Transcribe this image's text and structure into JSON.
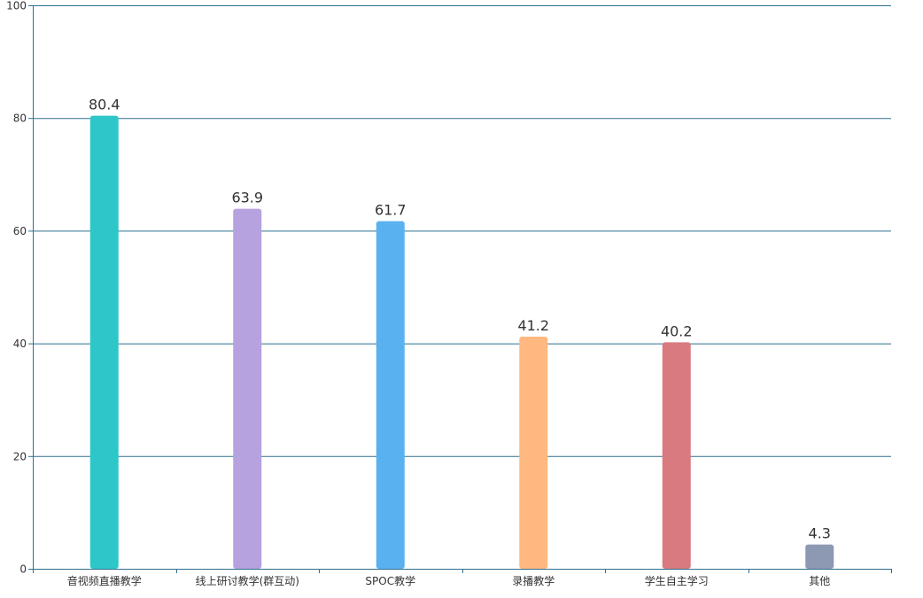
{
  "chart_data": {
    "type": "bar",
    "title": "",
    "xlabel": "",
    "ylabel": "",
    "ylim": [
      0,
      100
    ],
    "yticks": [
      0,
      20,
      40,
      60,
      80,
      100
    ],
    "grid": true,
    "legend": "none",
    "categories": [
      "音视频直播教学",
      "线上研讨教学(群互动)",
      "SPOC教学",
      "录播教学",
      "学生自主学习",
      "其他"
    ],
    "values": [
      80.4,
      63.9,
      61.7,
      41.2,
      40.2,
      4.3
    ],
    "value_labels": [
      "80.4",
      "63.9",
      "61.7",
      "41.2",
      "40.2",
      "4.3"
    ],
    "colors": [
      "#2ec7c9",
      "#b6a2de",
      "#5ab1ef",
      "#ffb980",
      "#d87a80",
      "#8d98b3"
    ],
    "axis_color": "#2f6f8f",
    "grid_color": "#2f6f8f",
    "label_color": "#333333"
  }
}
